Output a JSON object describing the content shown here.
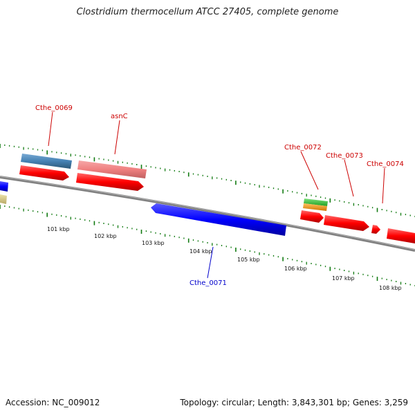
{
  "title": "Clostridium thermocellum ATCC 27405, complete genome",
  "footer": {
    "accession": "Accession: NC_009012",
    "summary": "Topology: circular; Length: 3,843,301 bp; Genes: 3,259"
  },
  "scale_labels": [
    "101 kbp",
    "102 kbp",
    "103 kbp",
    "104 kbp",
    "105 kbp",
    "106 kbp",
    "107 kbp",
    "108 kbp"
  ],
  "gene_labels": [
    {
      "text": "Cthe_0069",
      "color": "#cc0000"
    },
    {
      "text": "asnC",
      "color": "#cc0000"
    },
    {
      "text": "Cthe_0072",
      "color": "#cc0000"
    },
    {
      "text": "Cthe_0073",
      "color": "#cc0000"
    },
    {
      "text": "Cthe_0074",
      "color": "#cc0000"
    },
    {
      "text": "Cthe_0071",
      "color": "#0000cc"
    }
  ],
  "colors": {
    "backbone": "#808080",
    "cds_forward": "#ff0000",
    "cds_reverse": "#0000ff",
    "gene_light_red": "#f08080",
    "gene_steelblue": "#4682b4",
    "gene_green": "#33cc33",
    "gene_orange": "#ff9900",
    "gene_khaki": "#d8cc88",
    "tick": "#107a10"
  }
}
